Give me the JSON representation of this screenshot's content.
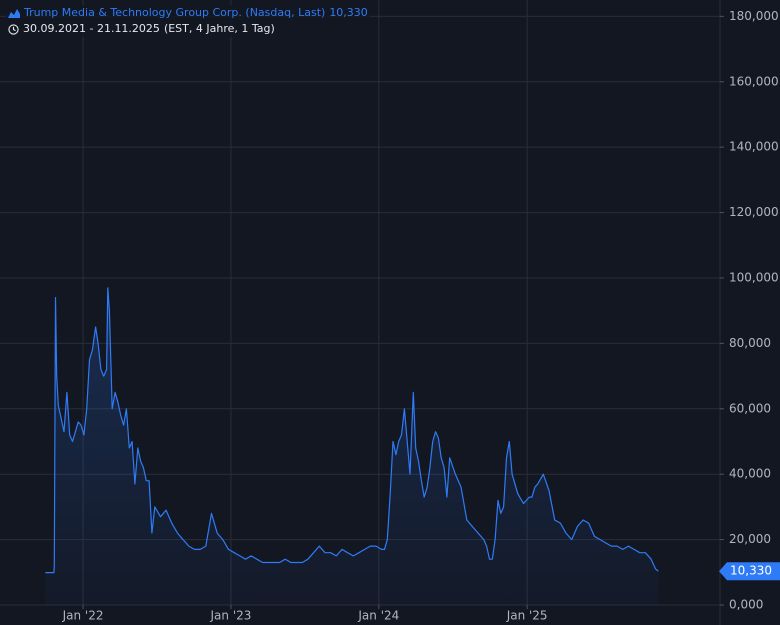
{
  "legend": {
    "title": "Trump Media & Technology Group Corp. (Nasdaq, Last)",
    "last_value": "10,330",
    "range": "30.09.2021 - 21.11.2025",
    "range_detail": "(EST, 4 Jahre, 1 Tag)",
    "series_icon": "mountain-area-icon",
    "time_icon": "clock-icon"
  },
  "price_tag": "10,330",
  "colors": {
    "background": "#131722",
    "grid": "#2a2e39",
    "line": "#2f7bf6",
    "axis_text": "#b2b5be",
    "tag_bg": "#2f7bf6"
  },
  "chart_data": {
    "type": "area",
    "title": "",
    "xlabel": "",
    "ylabel": "",
    "ylim": [
      0,
      185
    ],
    "x_range": [
      "2021-09-30",
      "2025-11-21"
    ],
    "y_ticks": [
      {
        "value": 0,
        "label": "0,000"
      },
      {
        "value": 20,
        "label": "20,000"
      },
      {
        "value": 40,
        "label": "40,000"
      },
      {
        "value": 60,
        "label": "60,000"
      },
      {
        "value": 80,
        "label": "80,000"
      },
      {
        "value": 100,
        "label": "100,000"
      },
      {
        "value": 120,
        "label": "120,000"
      },
      {
        "value": 140,
        "label": "140,000"
      },
      {
        "value": 160,
        "label": "160,000"
      },
      {
        "value": 180,
        "label": "180,000"
      }
    ],
    "x_ticks": [
      {
        "date": "2022-01-01",
        "label": "Jan '22"
      },
      {
        "date": "2023-01-01",
        "label": "Jan '23"
      },
      {
        "date": "2024-01-01",
        "label": "Jan '24"
      },
      {
        "date": "2025-01-01",
        "label": "Jan '25"
      }
    ],
    "grid": true,
    "series": [
      {
        "name": "Trump Media & Technology Group Corp. (Nasdaq, Last)",
        "x": [
          "2021-09-30",
          "2021-10-15",
          "2021-10-21",
          "2021-10-22",
          "2021-10-25",
          "2021-10-28",
          "2021-11-01",
          "2021-11-08",
          "2021-11-15",
          "2021-11-22",
          "2021-11-29",
          "2021-12-06",
          "2021-12-13",
          "2021-12-20",
          "2021-12-27",
          "2022-01-03",
          "2022-01-10",
          "2022-01-17",
          "2022-01-24",
          "2022-02-01",
          "2022-02-07",
          "2022-02-14",
          "2022-02-21",
          "2022-02-28",
          "2022-03-03",
          "2022-03-07",
          "2022-03-14",
          "2022-03-21",
          "2022-03-28",
          "2022-04-04",
          "2022-04-11",
          "2022-04-18",
          "2022-04-25",
          "2022-05-02",
          "2022-05-09",
          "2022-05-16",
          "2022-05-23",
          "2022-05-30",
          "2022-06-06",
          "2022-06-13",
          "2022-06-20",
          "2022-06-27",
          "2022-07-11",
          "2022-07-25",
          "2022-08-08",
          "2022-08-22",
          "2022-09-05",
          "2022-09-19",
          "2022-10-03",
          "2022-10-17",
          "2022-10-31",
          "2022-11-14",
          "2022-11-28",
          "2022-12-12",
          "2022-12-26",
          "2023-01-09",
          "2023-01-23",
          "2023-02-06",
          "2023-02-20",
          "2023-03-06",
          "2023-03-20",
          "2023-04-03",
          "2023-04-17",
          "2023-05-01",
          "2023-05-15",
          "2023-05-29",
          "2023-06-12",
          "2023-06-26",
          "2023-07-10",
          "2023-07-24",
          "2023-08-07",
          "2023-08-21",
          "2023-09-04",
          "2023-09-18",
          "2023-10-02",
          "2023-10-16",
          "2023-10-30",
          "2023-11-13",
          "2023-11-27",
          "2023-12-11",
          "2023-12-25",
          "2024-01-08",
          "2024-01-15",
          "2024-01-22",
          "2024-01-29",
          "2024-02-05",
          "2024-02-12",
          "2024-02-19",
          "2024-02-26",
          "2024-03-04",
          "2024-03-11",
          "2024-03-18",
          "2024-03-26",
          "2024-04-01",
          "2024-04-08",
          "2024-04-15",
          "2024-04-22",
          "2024-04-29",
          "2024-05-06",
          "2024-05-13",
          "2024-05-20",
          "2024-05-27",
          "2024-06-03",
          "2024-06-10",
          "2024-06-17",
          "2024-06-24",
          "2024-07-08",
          "2024-07-15",
          "2024-07-22",
          "2024-08-05",
          "2024-08-19",
          "2024-09-02",
          "2024-09-16",
          "2024-09-23",
          "2024-09-30",
          "2024-10-07",
          "2024-10-14",
          "2024-10-21",
          "2024-10-28",
          "2024-11-04",
          "2024-11-11",
          "2024-11-18",
          "2024-11-25",
          "2024-12-09",
          "2024-12-23",
          "2025-01-06",
          "2025-01-13",
          "2025-01-20",
          "2025-01-27",
          "2025-02-10",
          "2025-02-24",
          "2025-03-10",
          "2025-03-24",
          "2025-04-07",
          "2025-04-21",
          "2025-05-05",
          "2025-05-19",
          "2025-06-02",
          "2025-06-16",
          "2025-06-30",
          "2025-07-14",
          "2025-07-28",
          "2025-08-11",
          "2025-08-25",
          "2025-09-08",
          "2025-09-22",
          "2025-10-06",
          "2025-10-20",
          "2025-11-03",
          "2025-11-14",
          "2025-11-21"
        ],
        "values": [
          9.9,
          9.9,
          9.9,
          12,
          94,
          70,
          61,
          57,
          53,
          65,
          52,
          50,
          53,
          56,
          55,
          52,
          60,
          75,
          78,
          85,
          80,
          72,
          70,
          72,
          97,
          90,
          60,
          65,
          62,
          58,
          55,
          60,
          48,
          50,
          37,
          48,
          44,
          42,
          38,
          38,
          22,
          30,
          27,
          29,
          25,
          22,
          20,
          18,
          17,
          17,
          18,
          28,
          22,
          20,
          17,
          16,
          15,
          14,
          15,
          14,
          13,
          13,
          13,
          13,
          14,
          13,
          13,
          13,
          14,
          16,
          18,
          16,
          16,
          15,
          17,
          16,
          15,
          16,
          17,
          18,
          18,
          17,
          17,
          20,
          34,
          50,
          46,
          50,
          52,
          60,
          50,
          40,
          65,
          48,
          44,
          38,
          33,
          36,
          42,
          50,
          53,
          51,
          45,
          42,
          33,
          45,
          40,
          38,
          36,
          26,
          24,
          22,
          20,
          18,
          14,
          14,
          20,
          32,
          28,
          30,
          45,
          50,
          40,
          34,
          31,
          33,
          33,
          36,
          37,
          40,
          35,
          26,
          25,
          22,
          20,
          24,
          26,
          25,
          21,
          20,
          19,
          18,
          18,
          17,
          18,
          17,
          16,
          16,
          14,
          11,
          10.33
        ]
      }
    ]
  }
}
